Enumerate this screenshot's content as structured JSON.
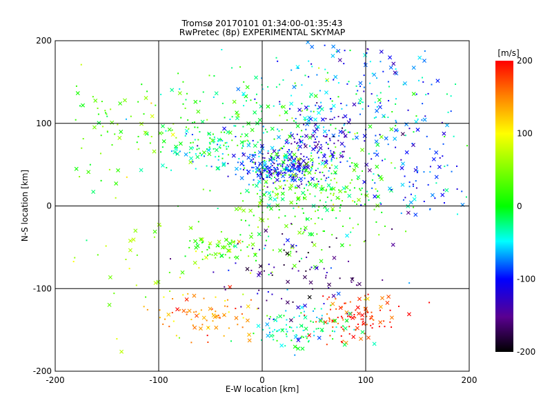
{
  "chart_data": {
    "type": "scatter",
    "title": "Tromsø 20170101 01:34:00-01:35:43",
    "subtitle": "RwPretec (8p) EXPERIMENTAL SKYMAP",
    "xlabel": "E-W location [km]",
    "ylabel": "N-S location [km]",
    "xlim": [
      -200,
      200
    ],
    "ylim": [
      -200,
      200
    ],
    "x_ticks": [
      "-200",
      "-100",
      "0",
      "100",
      "200"
    ],
    "y_ticks": [
      "200",
      "100",
      "0",
      "-100",
      "-200"
    ],
    "grid": true,
    "colorbar": {
      "label": "[m/s]",
      "range": [
        -200,
        200
      ],
      "ticks": [
        "200",
        "100",
        "0",
        "-100",
        "-200"
      ]
    },
    "markers": [
      "x",
      "dot"
    ],
    "clusters": [
      {
        "x": 15,
        "y": 45,
        "sx": 22,
        "sy": 10,
        "v": -95,
        "n": 230
      },
      {
        "x": 50,
        "y": 75,
        "sx": 22,
        "sy": 18,
        "v": -115,
        "n": 120
      },
      {
        "x": -50,
        "y": 72,
        "sx": 25,
        "sy": 12,
        "v": -40,
        "n": 90
      },
      {
        "x": 45,
        "y": 10,
        "sx": 40,
        "sy": 35,
        "v": 20,
        "n": 300
      },
      {
        "x": -40,
        "y": -52,
        "sx": 20,
        "sy": 8,
        "v": 20,
        "n": 60
      },
      {
        "x": 90,
        "y": -135,
        "sx": 20,
        "sy": 15,
        "v": 185,
        "n": 110
      },
      {
        "x": 40,
        "y": -150,
        "sx": 25,
        "sy": 12,
        "v": -30,
        "n": 100
      },
      {
        "x": -60,
        "y": -130,
        "sx": 30,
        "sy": 15,
        "v": 140,
        "n": 80
      },
      {
        "x": 0,
        "y": 100,
        "sx": 70,
        "sy": 40,
        "v": 0,
        "n": 180
      },
      {
        "x": 70,
        "y": 140,
        "sx": 40,
        "sy": 35,
        "v": -80,
        "n": 120
      },
      {
        "x": 140,
        "y": 100,
        "sx": 30,
        "sy": 50,
        "v": -60,
        "n": 90
      },
      {
        "x": -130,
        "y": 100,
        "sx": 40,
        "sy": 30,
        "v": 40,
        "n": 70
      },
      {
        "x": 40,
        "y": -80,
        "sx": 40,
        "sy": 30,
        "v": -150,
        "n": 90
      },
      {
        "x": -120,
        "y": -60,
        "sx": 40,
        "sy": 40,
        "v": 50,
        "n": 40
      },
      {
        "x": 150,
        "y": 40,
        "sx": 30,
        "sy": 30,
        "v": -100,
        "n": 60
      }
    ]
  }
}
